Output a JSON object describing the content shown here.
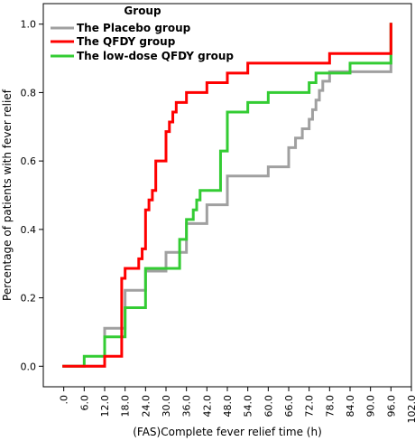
{
  "chart_data": {
    "type": "line",
    "step": true,
    "xlabel": "(FAS)Complete fever relief time (h)",
    "ylabel": "Percentage of patients with  fever relief",
    "xlim": [
      -6,
      102
    ],
    "ylim": [
      -0.06,
      1.06
    ],
    "xticks": [
      ".0",
      "6.0",
      "12.0",
      "18.0",
      "24.0",
      "30.0",
      "36.0",
      "42.0",
      "48.0",
      "54.0",
      "60.0",
      "66.0",
      "72.0",
      "78.0",
      "84.0",
      "90.0",
      "96.0",
      "102.0"
    ],
    "yticks": [
      "0.0",
      "0.2",
      "0.4",
      "0.6",
      "0.8",
      "1.0"
    ],
    "legend": {
      "title": "Group",
      "placement": "top-left"
    },
    "series": [
      {
        "name": "The Placebo group",
        "color": "#a0a0a0",
        "x": [
          0,
          6,
          7,
          12,
          13,
          16,
          18,
          24,
          28,
          30,
          34,
          36,
          38,
          40,
          42,
          44,
          48,
          52,
          54,
          56,
          60,
          62,
          64,
          66,
          68,
          70,
          72,
          73,
          74,
          75,
          76,
          78,
          80,
          84,
          90,
          96
        ],
        "y": [
          0,
          0,
          0,
          0.111,
          0.111,
          0.111,
          0.222,
          0.278,
          0.278,
          0.333,
          0.333,
          0.417,
          0.417,
          0.417,
          0.472,
          0.472,
          0.556,
          0.556,
          0.556,
          0.556,
          0.583,
          0.583,
          0.583,
          0.639,
          0.667,
          0.694,
          0.722,
          0.75,
          0.778,
          0.806,
          0.833,
          0.861,
          0.861,
          0.861,
          0.861,
          1.0
        ]
      },
      {
        "name": "The QFDY group",
        "color": "#ff0000",
        "x": [
          0,
          6,
          7,
          12,
          16,
          17,
          18,
          20,
          22,
          23,
          24,
          25,
          26,
          27,
          28,
          30,
          31,
          32,
          33,
          34,
          36,
          42,
          46,
          48,
          50,
          54,
          60,
          66,
          72,
          78,
          84,
          90,
          96
        ],
        "y": [
          0,
          0,
          0,
          0.029,
          0.029,
          0.257,
          0.286,
          0.286,
          0.314,
          0.343,
          0.457,
          0.486,
          0.514,
          0.6,
          0.6,
          0.686,
          0.714,
          0.743,
          0.771,
          0.771,
          0.8,
          0.829,
          0.829,
          0.857,
          0.857,
          0.886,
          0.886,
          0.886,
          0.886,
          0.914,
          0.914,
          0.914,
          1.0
        ]
      },
      {
        "name": "The low-dose QFDY group",
        "color": "#33cc33",
        "x": [
          0,
          4,
          6,
          12,
          16,
          18,
          23,
          24,
          30,
          33,
          34,
          35,
          36,
          38,
          39,
          40,
          42,
          46,
          48,
          52,
          54,
          58,
          60,
          64,
          66,
          72,
          74,
          76,
          78,
          84,
          90,
          96
        ],
        "y": [
          0,
          0,
          0.029,
          0.086,
          0.086,
          0.171,
          0.171,
          0.286,
          0.286,
          0.286,
          0.371,
          0.371,
          0.429,
          0.457,
          0.486,
          0.514,
          0.514,
          0.629,
          0.743,
          0.743,
          0.771,
          0.771,
          0.8,
          0.8,
          0.8,
          0.829,
          0.857,
          0.857,
          0.857,
          0.886,
          0.886,
          1.0
        ]
      }
    ]
  }
}
